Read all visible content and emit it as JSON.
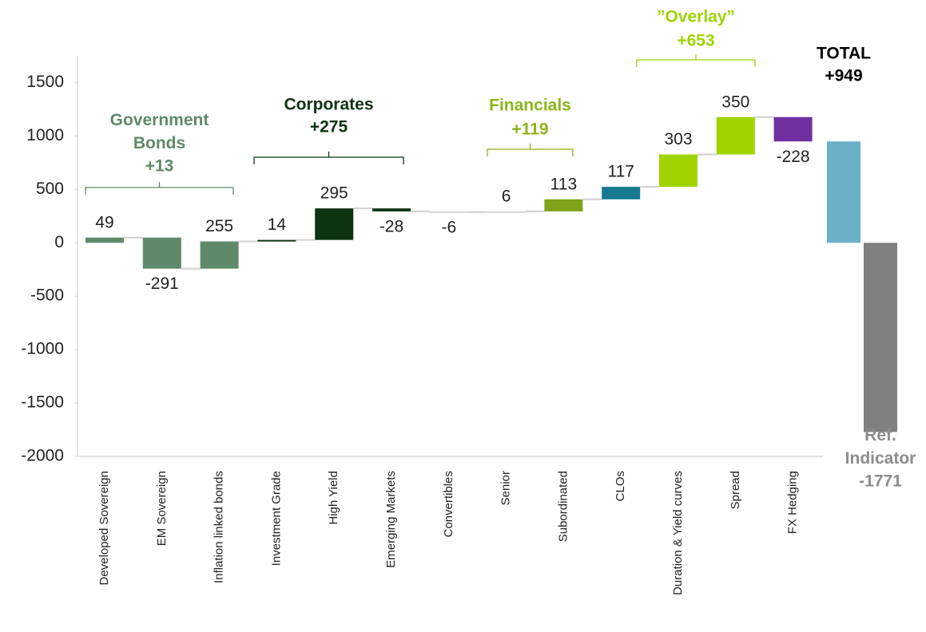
{
  "chart_data": {
    "type": "waterfall",
    "categories": [
      "Developed Sovereign",
      "EM Sovereign",
      "Inflation linked bonds",
      "Investment Grade",
      "High Yield",
      "Emerging Markets",
      "Convertibles",
      "Senior",
      "Subordinated",
      "CLOs",
      "Duration & Yield curves",
      "Spread",
      "FX Hedging"
    ],
    "values": [
      49,
      -291,
      255,
      14,
      295,
      -28,
      -6,
      6,
      113,
      117,
      303,
      350,
      -228
    ],
    "colors": [
      "#5f8a6a",
      "#5f8a6a",
      "#5f8a6a",
      "#0d3311",
      "#0d3311",
      "#0d3311",
      "#d9d9d9",
      "#d9d9d9",
      "#7ea31a",
      "#157a8f",
      "#9fd400",
      "#9fd400",
      "#7030a0"
    ],
    "totals": [
      {
        "name": "TOTAL",
        "value": 949,
        "value_label": "+949",
        "color": "#6ab0c8",
        "label_color": "#000000"
      },
      {
        "name": "Ref. Indicator",
        "value": -1771,
        "color": "#808080",
        "label_color": "#8c8c8c"
      }
    ],
    "groups": [
      {
        "name": "Government Bonds",
        "label": "+13",
        "color": "#5f8a6a"
      },
      {
        "name": "Corporates",
        "label": "+275",
        "color": "#0d3311"
      },
      {
        "name": "Financials",
        "label": "+119",
        "color": "#8db51a"
      },
      {
        "name": "”Overlay”",
        "label": "+653",
        "color": "#9fd400"
      }
    ],
    "ylim": [
      -2000,
      1750
    ],
    "yticks": [
      -2000,
      -1500,
      -1000,
      -500,
      0,
      500,
      1000,
      1500
    ]
  }
}
